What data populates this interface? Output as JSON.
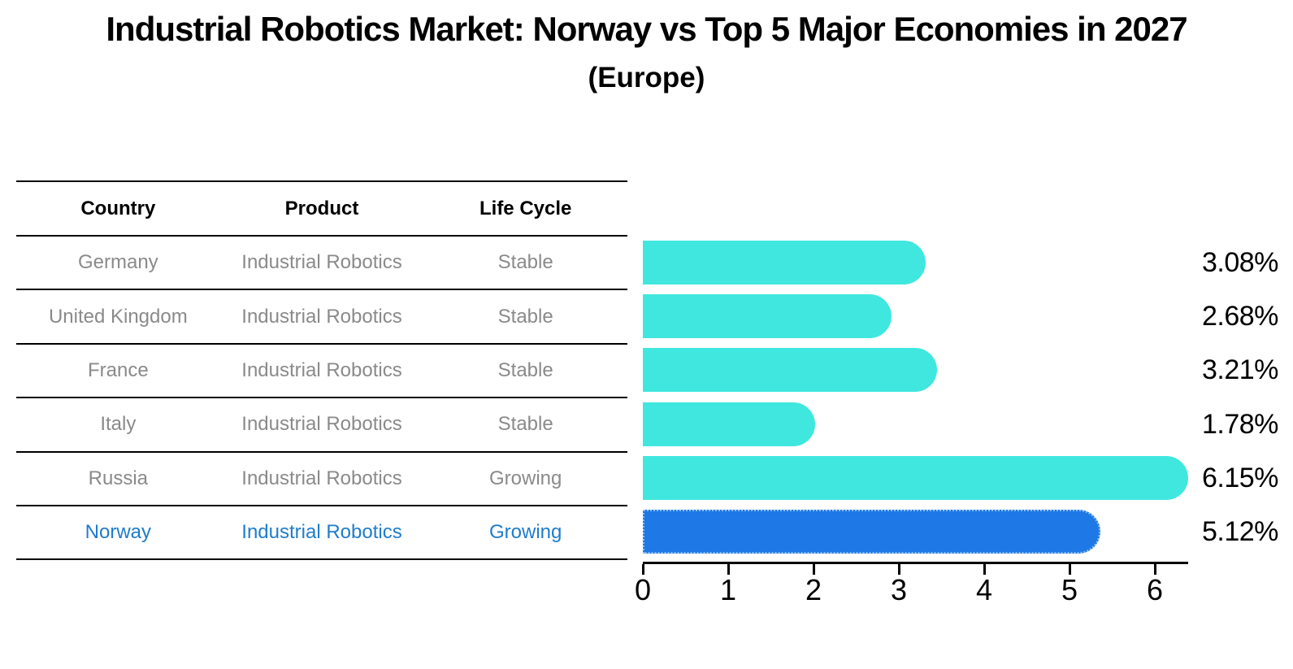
{
  "title": "Industrial Robotics Market: Norway vs Top 5 Major Economies in 2027",
  "subtitle": "(Europe)",
  "table": {
    "headers": [
      "Country",
      "Product",
      "Life Cycle"
    ]
  },
  "chart_data": {
    "type": "bar",
    "orientation": "horizontal",
    "title": "Industrial Robotics Market: Norway vs Top 5 Major Economies in 2027 (Europe)",
    "categories": [
      "Germany",
      "United Kingdom",
      "France",
      "Italy",
      "Russia",
      "Norway"
    ],
    "values": [
      3.08,
      2.68,
      3.21,
      1.78,
      6.15,
      5.12
    ],
    "value_labels": [
      "3.08%",
      "2.68%",
      "3.21%",
      "1.78%",
      "6.15%",
      "5.12%"
    ],
    "rows": [
      {
        "country": "Germany",
        "product": "Industrial Robotics",
        "life_cycle": "Stable",
        "value": 3.08,
        "label": "3.08%",
        "highlight": false
      },
      {
        "country": "United Kingdom",
        "product": "Industrial Robotics",
        "life_cycle": "Stable",
        "value": 2.68,
        "label": "2.68%",
        "highlight": false
      },
      {
        "country": "France",
        "product": "Industrial Robotics",
        "life_cycle": "Stable",
        "value": 3.21,
        "label": "3.21%",
        "highlight": false
      },
      {
        "country": "Italy",
        "product": "Industrial Robotics",
        "life_cycle": "Stable",
        "value": 1.78,
        "label": "1.78%",
        "highlight": false
      },
      {
        "country": "Russia",
        "product": "Industrial Robotics",
        "life_cycle": "Growing",
        "value": 6.15,
        "label": "6.15%",
        "highlight": false
      },
      {
        "country": "Norway",
        "product": "Industrial Robotics",
        "life_cycle": "Growing",
        "value": 5.12,
        "label": "5.12%",
        "highlight": true
      }
    ],
    "x_ticks": [
      "0",
      "1",
      "2",
      "3",
      "4",
      "5",
      "6"
    ],
    "xlim": [
      0,
      6.4
    ],
    "grid": false,
    "legend": "none",
    "highlight_category": "Norway"
  },
  "colors": {
    "bar": "#40e7df",
    "highlight_bar": "#1e78e6",
    "highlight_border": "#8fc0f2",
    "highlight_text": "#1f7ccb",
    "row_text": "#8a8a8a",
    "text": "#000000"
  }
}
